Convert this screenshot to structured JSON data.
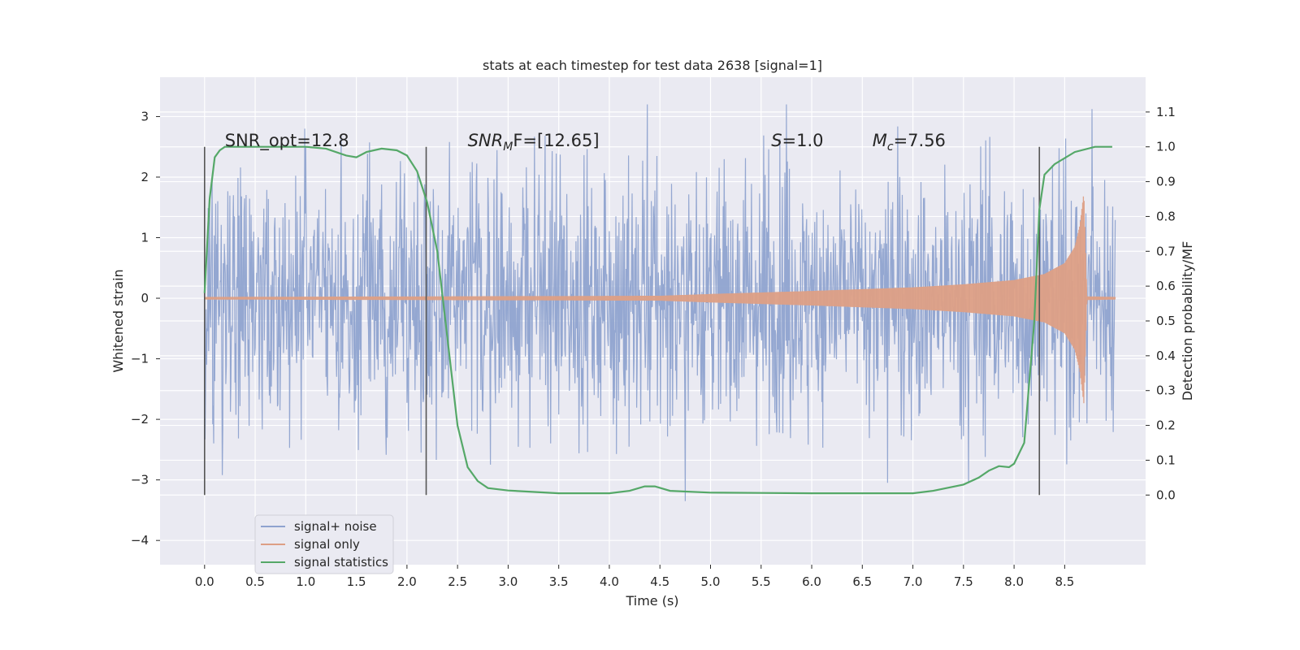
{
  "chart_data": {
    "type": "line",
    "title": "stats at each timestep for test data 2638 [signal=1]",
    "xlabel": "Time (s)",
    "ylabel_left": "Whitened strain",
    "ylabel_right": "Detection probability/MF",
    "xlim": [
      -0.44,
      9.3
    ],
    "ylim_left": [
      -4.4,
      3.65
    ],
    "ylim_right": [
      -0.2,
      1.2
    ],
    "x_ticks": [
      "0.0",
      "0.5",
      "1.0",
      "1.5",
      "2.0",
      "2.5",
      "3.0",
      "3.5",
      "4.0",
      "4.5",
      "5.0",
      "5.5",
      "6.0",
      "6.5",
      "7.0",
      "7.5",
      "8.0",
      "8.5"
    ],
    "y_ticks_left": [
      "3",
      "2",
      "1",
      "0",
      "−1",
      "−2",
      "−3",
      "−4"
    ],
    "y_ticks_right": [
      "1.1",
      "1.0",
      "0.9",
      "0.8",
      "0.7",
      "0.6",
      "0.5",
      "0.4",
      "0.3",
      "0.2",
      "0.1",
      "0.0"
    ],
    "grid": true,
    "legend_position": "lower-left",
    "colors": {
      "noise": "#8fa3cf",
      "signal": "#dd9f85",
      "stats": "#55a868",
      "vline": "#555555",
      "background": "#eaeaf2",
      "grid": "#ffffff"
    },
    "series": [
      {
        "name": "signal+ noise",
        "description_range": "dense noise spanning roughly -3.5 to 3.2 in whitened strain over 0 to 9.0 s"
      },
      {
        "name": "signal only",
        "amplitude_envelope": {
          "x": [
            0.0,
            4.5,
            5.0,
            6.0,
            7.0,
            7.5,
            8.0,
            8.3,
            8.5,
            8.6,
            8.65,
            8.69,
            8.72,
            9.0
          ],
          "amp": [
            0.02,
            0.04,
            0.07,
            0.12,
            0.18,
            0.23,
            0.3,
            0.4,
            0.58,
            0.85,
            1.2,
            1.75,
            0.03,
            0.02
          ]
        }
      },
      {
        "name": "signal statistics",
        "x": [
          0.0,
          0.05,
          0.1,
          0.15,
          0.2,
          0.3,
          0.5,
          1.0,
          1.2,
          1.4,
          1.5,
          1.6,
          1.75,
          1.9,
          2.0,
          2.1,
          2.2,
          2.3,
          2.4,
          2.5,
          2.6,
          2.7,
          2.8,
          3.0,
          3.5,
          4.0,
          4.2,
          4.35,
          4.45,
          4.6,
          5.0,
          5.5,
          6.0,
          6.5,
          7.0,
          7.2,
          7.5,
          7.65,
          7.75,
          7.85,
          7.95,
          8.0,
          8.1,
          8.2,
          8.25,
          8.3,
          8.4,
          8.6,
          8.8,
          8.97
        ],
        "y": [
          0.58,
          0.85,
          0.97,
          0.99,
          1.0,
          1.0,
          1.0,
          1.0,
          0.995,
          0.975,
          0.97,
          0.985,
          0.995,
          0.99,
          0.975,
          0.93,
          0.84,
          0.7,
          0.45,
          0.2,
          0.08,
          0.04,
          0.02,
          0.013,
          0.005,
          0.005,
          0.012,
          0.025,
          0.025,
          0.012,
          0.007,
          0.006,
          0.005,
          0.005,
          0.005,
          0.012,
          0.03,
          0.05,
          0.07,
          0.083,
          0.08,
          0.09,
          0.15,
          0.5,
          0.82,
          0.92,
          0.95,
          0.985,
          1.0,
          1.0
        ]
      }
    ],
    "vertical_lines_x": [
      0.0,
      2.19,
      8.25
    ],
    "annotations": [
      {
        "x": 0.2,
        "text": "SNR_opt=12.8"
      },
      {
        "x": 2.6,
        "label": "SNR",
        "sub": "M",
        "tail": "F=[12.65]"
      },
      {
        "x": 5.6,
        "label": "S",
        "tail": "=1.0"
      },
      {
        "x": 6.6,
        "label": "M",
        "sub": "c",
        "tail": "=7.56"
      }
    ],
    "legend": [
      "signal+ noise",
      "signal only",
      "signal statistics"
    ]
  }
}
